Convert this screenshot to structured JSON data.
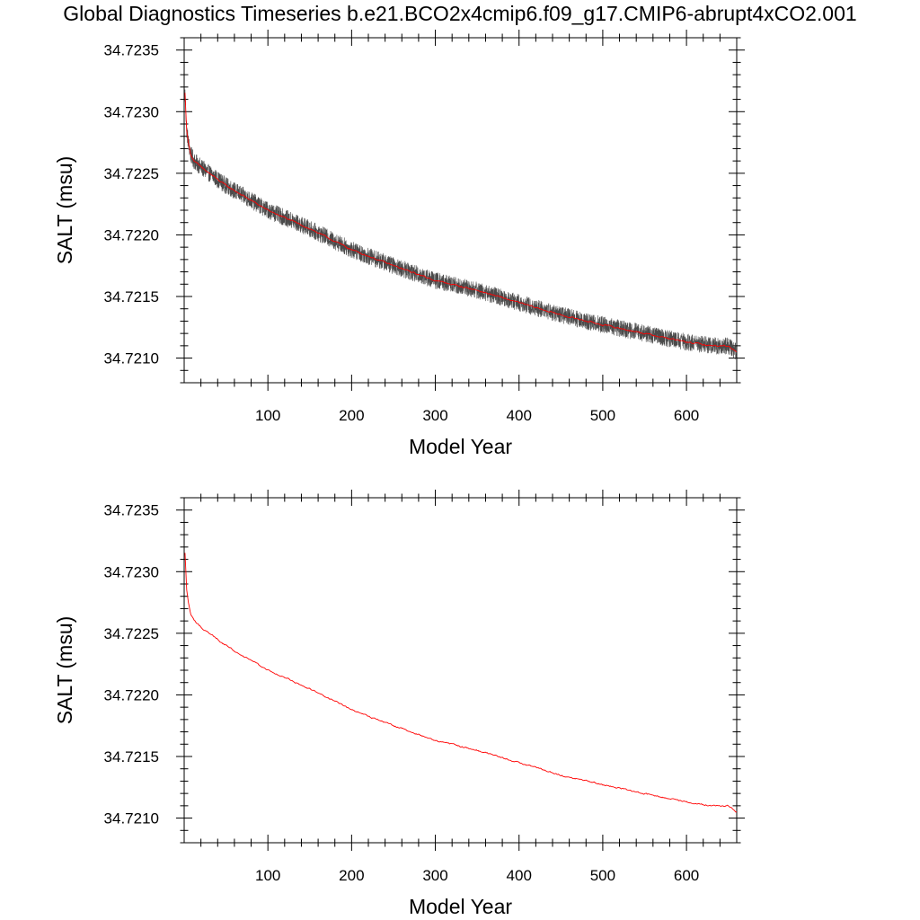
{
  "title": "Global Diagnostics Timeseries b.e21.BCO2x4cmip6.f09_g17.CMIP6-abrupt4xCO2.001",
  "colors": {
    "monthly": "#2b2b2b",
    "annual": "#ff0000",
    "axis": "#000000"
  },
  "chart_data": [
    {
      "type": "line",
      "xlabel": "Model Year",
      "ylabel": "SALT (msu)",
      "xlim": [
        0,
        660
      ],
      "ylim": [
        34.7208,
        34.7236
      ],
      "xticks": [
        "100",
        "200",
        "300",
        "400",
        "500",
        "600"
      ],
      "yticks": [
        "34.7235",
        "34.7230",
        "34.7225",
        "34.7220",
        "34.7215",
        "34.7210"
      ],
      "series": [
        {
          "color": "#2b2b2b",
          "style": "monthly, noisy band",
          "x": [
            1,
            3,
            5,
            8,
            12,
            20,
            30,
            50,
            75,
            100,
            150,
            200,
            250,
            300,
            350,
            400,
            450,
            500,
            550,
            600,
            630,
            650,
            660
          ],
          "y": [
            34.72315,
            34.72285,
            34.72275,
            34.72265,
            34.7226,
            34.72255,
            34.7225,
            34.7224,
            34.7223,
            34.7222,
            34.72205,
            34.72188,
            34.72175,
            34.72163,
            34.72155,
            34.72145,
            34.72135,
            34.72127,
            34.7212,
            34.72113,
            34.7211,
            34.7211,
            34.72105
          ],
          "noise_amplitude": 7e-05
        },
        {
          "color": "#ff0000",
          "style": "annual mean",
          "x": [
            1,
            3,
            5,
            8,
            12,
            20,
            30,
            50,
            75,
            100,
            150,
            200,
            250,
            300,
            350,
            400,
            450,
            500,
            550,
            600,
            630,
            650,
            660
          ],
          "y": [
            34.72315,
            34.72285,
            34.72275,
            34.72265,
            34.7226,
            34.72255,
            34.7225,
            34.7224,
            34.7223,
            34.7222,
            34.72205,
            34.72188,
            34.72175,
            34.72163,
            34.72155,
            34.72145,
            34.72135,
            34.72127,
            34.7212,
            34.72113,
            34.7211,
            34.7211,
            34.72105
          ],
          "noise_amplitude": 1.2e-05
        }
      ]
    },
    {
      "type": "line",
      "xlabel": "Model Year",
      "ylabel": "SALT (msu)",
      "xlim": [
        0,
        660
      ],
      "ylim": [
        34.7208,
        34.7236
      ],
      "xticks": [
        "100",
        "200",
        "300",
        "400",
        "500",
        "600"
      ],
      "yticks": [
        "34.7235",
        "34.7230",
        "34.7225",
        "34.7220",
        "34.7215",
        "34.7210"
      ],
      "series": [
        {
          "color": "#ff0000",
          "style": "annual mean",
          "x": [
            1,
            3,
            5,
            8,
            12,
            20,
            30,
            50,
            75,
            100,
            150,
            200,
            250,
            300,
            350,
            400,
            450,
            500,
            550,
            600,
            630,
            650,
            660
          ],
          "y": [
            34.72315,
            34.72285,
            34.72275,
            34.72265,
            34.7226,
            34.72255,
            34.7225,
            34.7224,
            34.7223,
            34.7222,
            34.72205,
            34.72188,
            34.72175,
            34.72163,
            34.72155,
            34.72145,
            34.72135,
            34.72127,
            34.7212,
            34.72113,
            34.7211,
            34.7211,
            34.72105
          ],
          "noise_amplitude": 1.2e-05
        }
      ]
    }
  ]
}
